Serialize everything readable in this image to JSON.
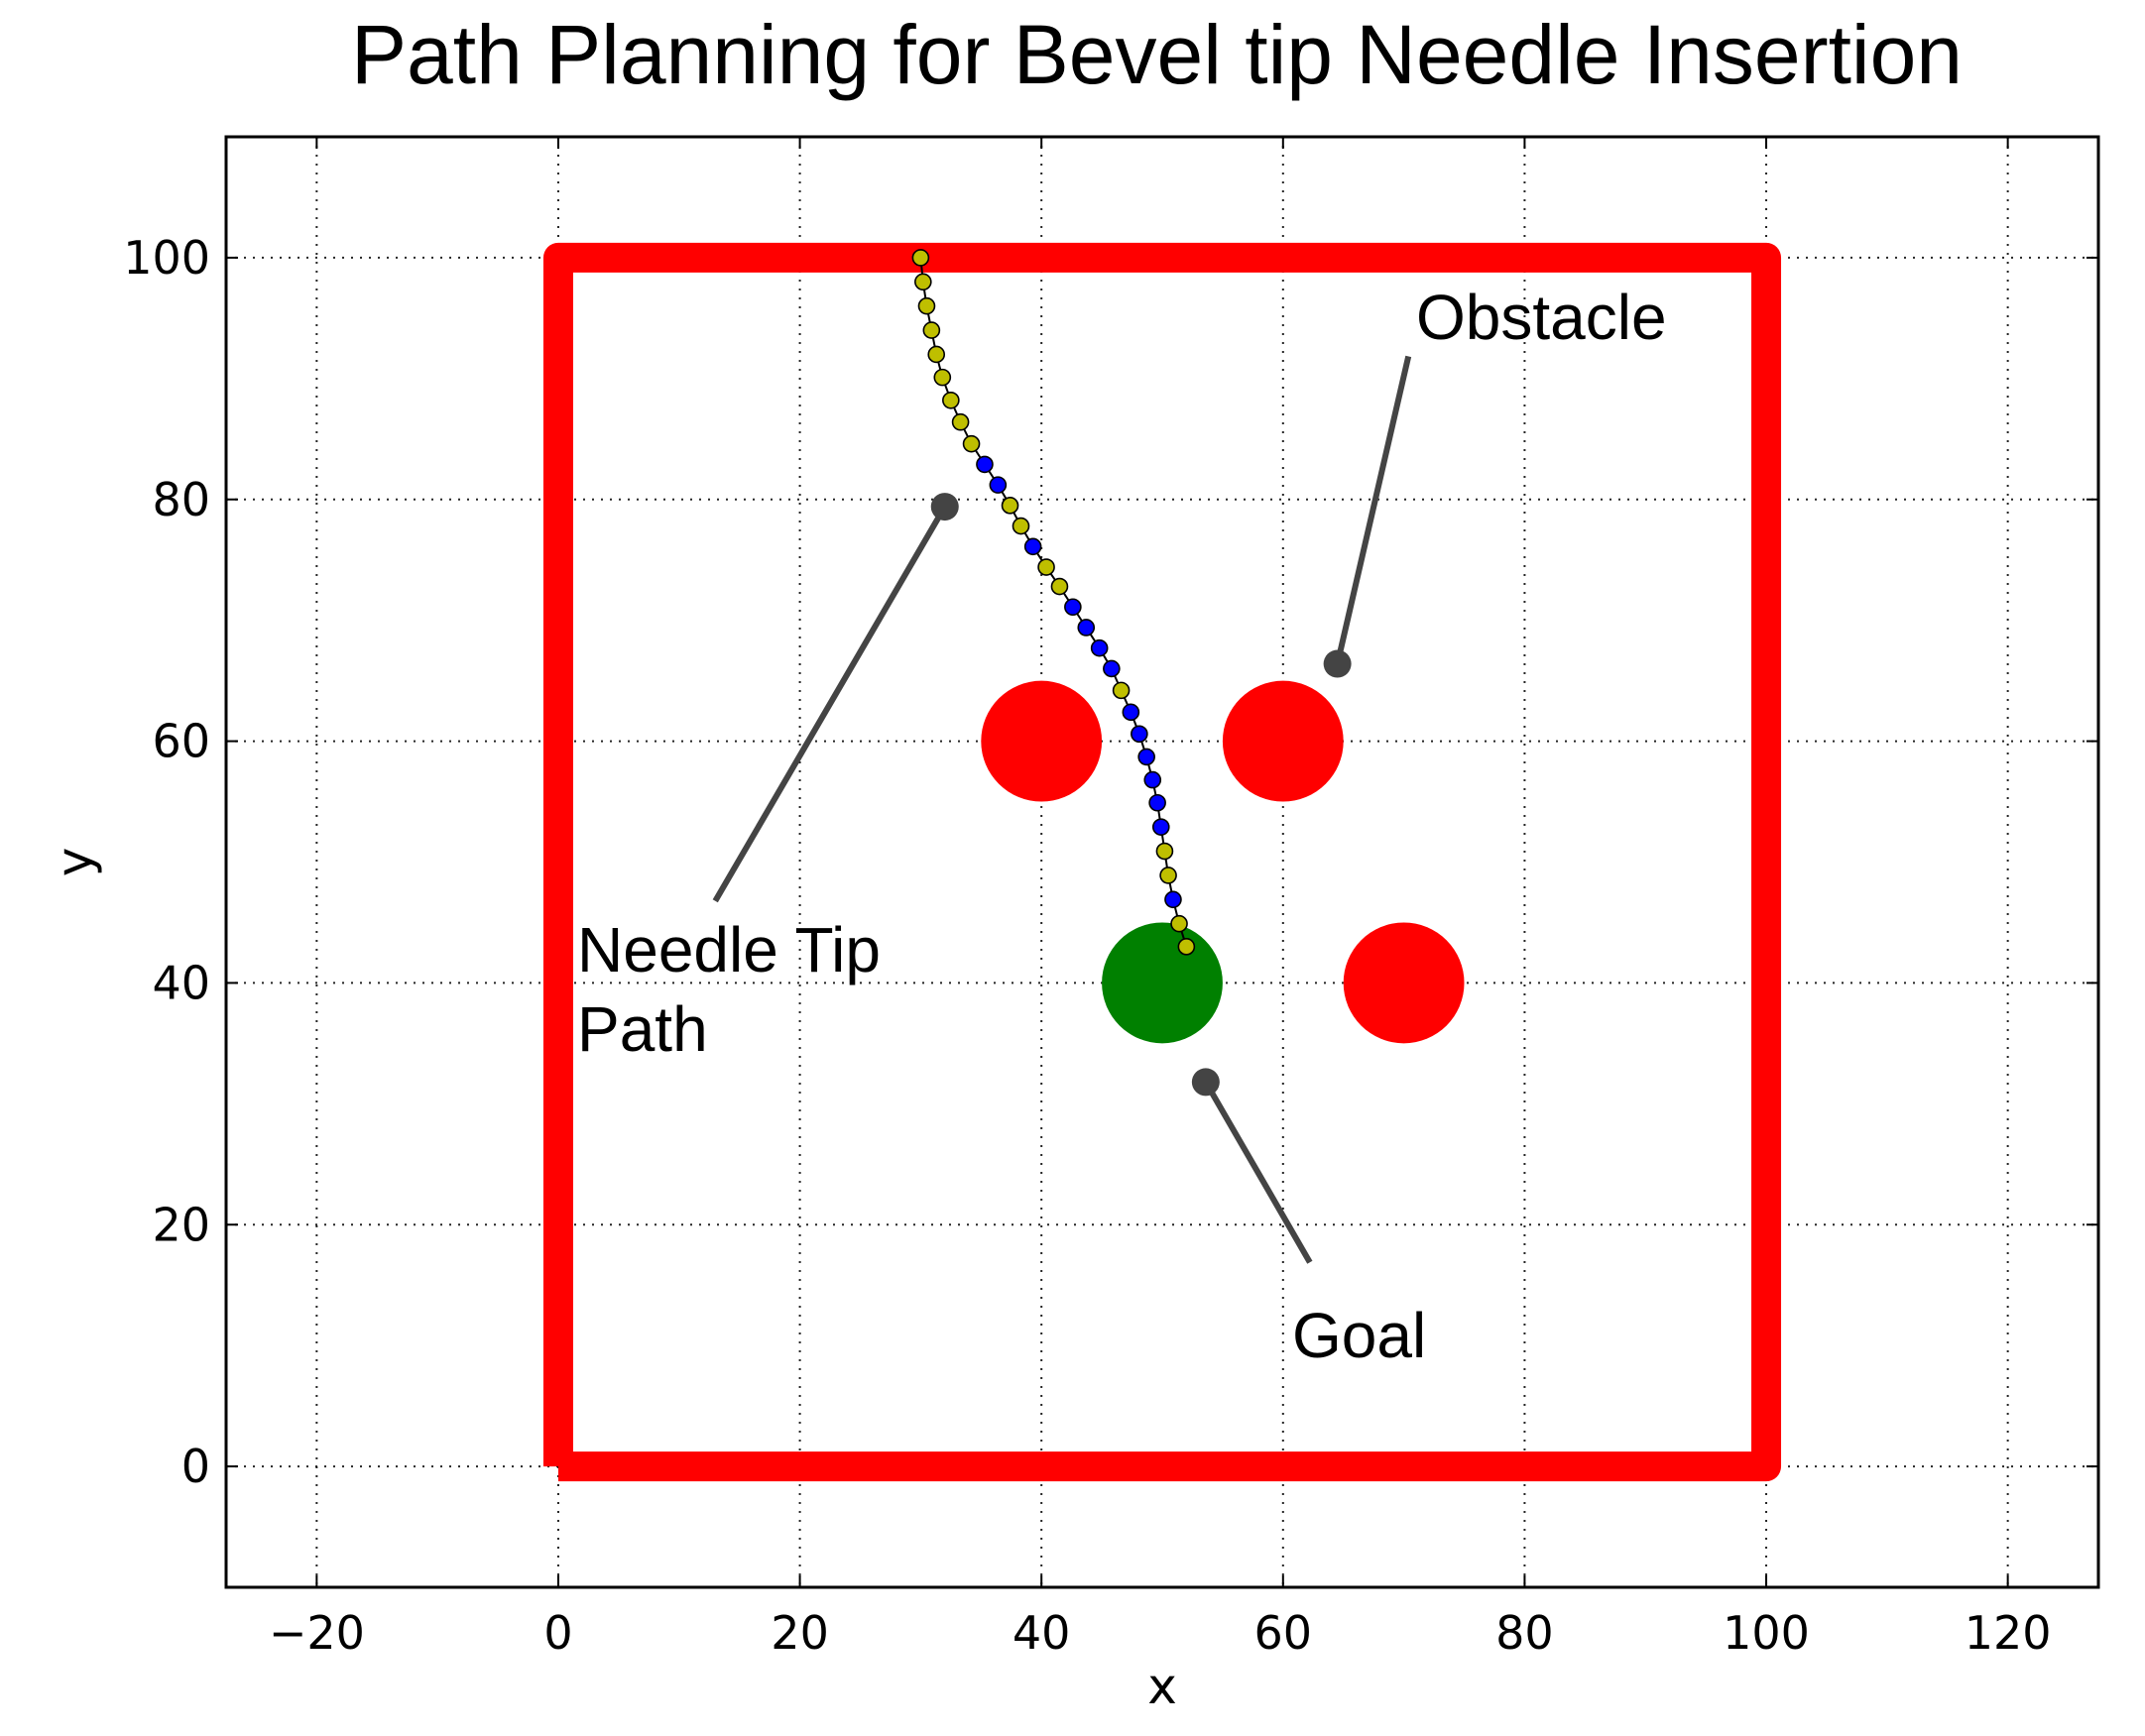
{
  "chart_data": {
    "type": "scatter",
    "title": "Path Planning for Bevel tip Needle Insertion",
    "xlabel": "x",
    "ylabel": "y",
    "xlim": [
      -27.5,
      127.5
    ],
    "ylim": [
      -10,
      110
    ],
    "xticks": [
      -20,
      0,
      20,
      40,
      60,
      80,
      100,
      120
    ],
    "yticks": [
      0,
      20,
      40,
      60,
      80,
      100
    ],
    "xtick_labels": [
      "−20",
      "0",
      "20",
      "40",
      "60",
      "80",
      "100",
      "120"
    ],
    "ytick_labels": [
      "0",
      "20",
      "40",
      "60",
      "80",
      "100"
    ],
    "grid": true,
    "boundary": {
      "x": [
        0,
        100,
        100,
        0,
        0
      ],
      "y": [
        0,
        0,
        100,
        100,
        0
      ],
      "color": "#ff0000"
    },
    "obstacles": [
      {
        "x": 40,
        "y": 60,
        "r": 5
      },
      {
        "x": 60,
        "y": 60,
        "r": 5
      },
      {
        "x": 70,
        "y": 40,
        "r": 5
      }
    ],
    "obstacle_color": "#ff0000",
    "goal": {
      "x": 50,
      "y": 40,
      "r": 5,
      "color": "#008000"
    },
    "path": [
      {
        "x": 30.0,
        "y": 100.0,
        "c": "y"
      },
      {
        "x": 30.2,
        "y": 98.0,
        "c": "y"
      },
      {
        "x": 30.5,
        "y": 96.0,
        "c": "y"
      },
      {
        "x": 30.9,
        "y": 94.0,
        "c": "y"
      },
      {
        "x": 31.3,
        "y": 92.0,
        "c": "y"
      },
      {
        "x": 31.8,
        "y": 90.1,
        "c": "y"
      },
      {
        "x": 32.5,
        "y": 88.2,
        "c": "y"
      },
      {
        "x": 33.3,
        "y": 86.4,
        "c": "y"
      },
      {
        "x": 34.2,
        "y": 84.6,
        "c": "y"
      },
      {
        "x": 35.3,
        "y": 82.9,
        "c": "b"
      },
      {
        "x": 36.4,
        "y": 81.2,
        "c": "b"
      },
      {
        "x": 37.4,
        "y": 79.5,
        "c": "y"
      },
      {
        "x": 38.3,
        "y": 77.8,
        "c": "y"
      },
      {
        "x": 39.3,
        "y": 76.1,
        "c": "b"
      },
      {
        "x": 40.4,
        "y": 74.4,
        "c": "y"
      },
      {
        "x": 41.5,
        "y": 72.8,
        "c": "y"
      },
      {
        "x": 42.6,
        "y": 71.1,
        "c": "b"
      },
      {
        "x": 43.7,
        "y": 69.4,
        "c": "b"
      },
      {
        "x": 44.8,
        "y": 67.7,
        "c": "b"
      },
      {
        "x": 45.8,
        "y": 66.0,
        "c": "b"
      },
      {
        "x": 46.6,
        "y": 64.2,
        "c": "y"
      },
      {
        "x": 47.4,
        "y": 62.4,
        "c": "b"
      },
      {
        "x": 48.1,
        "y": 60.6,
        "c": "b"
      },
      {
        "x": 48.7,
        "y": 58.7,
        "c": "b"
      },
      {
        "x": 49.2,
        "y": 56.8,
        "c": "b"
      },
      {
        "x": 49.6,
        "y": 54.9,
        "c": "b"
      },
      {
        "x": 49.9,
        "y": 52.9,
        "c": "b"
      },
      {
        "x": 50.2,
        "y": 50.9,
        "c": "y"
      },
      {
        "x": 50.5,
        "y": 48.9,
        "c": "y"
      },
      {
        "x": 50.9,
        "y": 46.9,
        "c": "b"
      },
      {
        "x": 51.4,
        "y": 44.9,
        "c": "y"
      },
      {
        "x": 52.0,
        "y": 43.0,
        "c": "y"
      }
    ],
    "path_colors": {
      "y": "#bfbf00",
      "b": "#0000ff"
    },
    "annotations": [
      {
        "text": "Obstacle",
        "point": [
          64.5,
          66.4
        ],
        "text_at": [
          71.2,
          94.3
        ]
      },
      {
        "text": "Needle Tip\nPath",
        "point": [
          32.0,
          79.4
        ],
        "text_at": [
          17.1,
          47.6
        ]
      },
      {
        "text": "Goal",
        "point": [
          53.6,
          31.8
        ],
        "text_at": [
          61.4,
          13.6
        ]
      }
    ]
  }
}
